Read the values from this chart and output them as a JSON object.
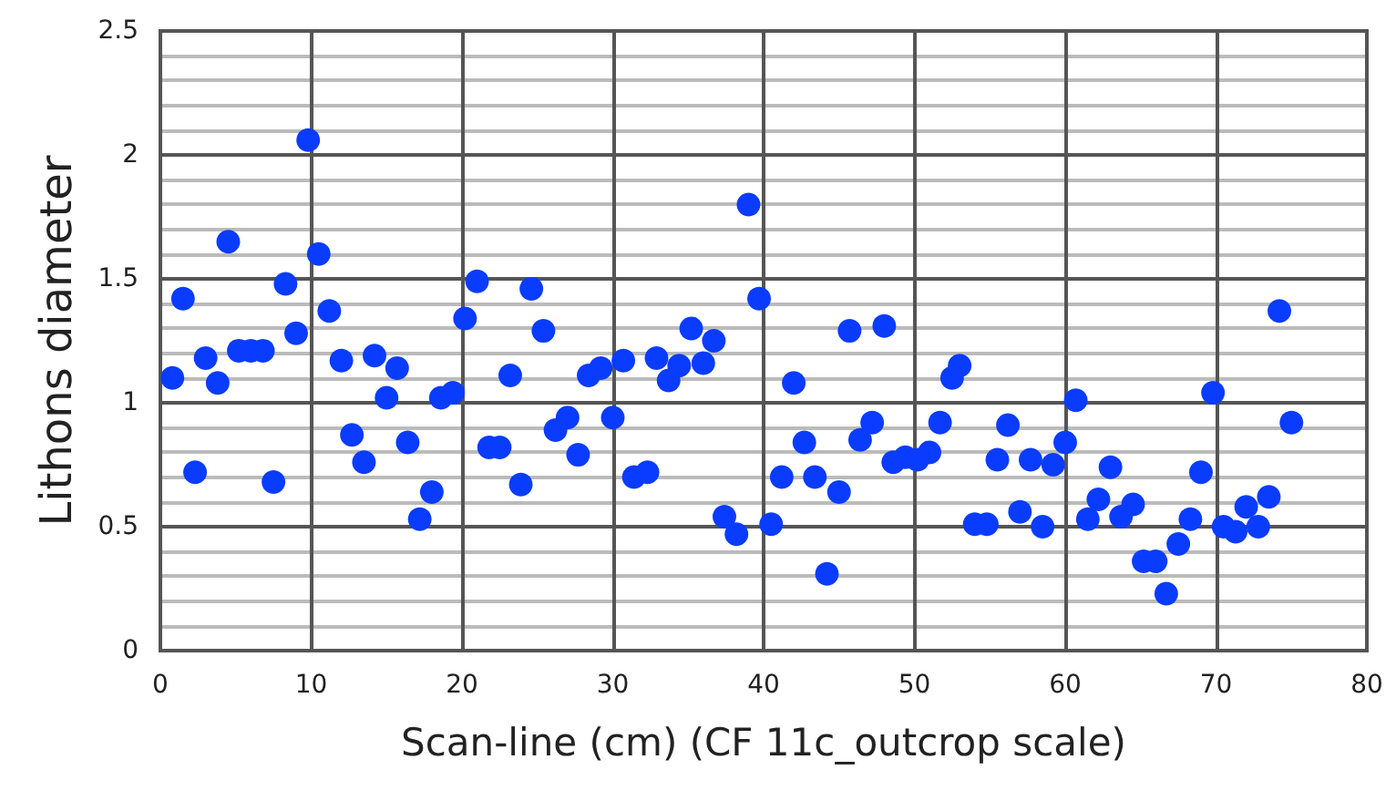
{
  "chart_data": {
    "type": "scatter",
    "xlabel": "Scan-line (cm) (CF 11c_outcrop scale)",
    "ylabel": "Lithons diameter",
    "series": [
      {
        "color": "#0a3cff",
        "x": [
          0.8,
          1.5,
          2.3,
          3.0,
          3.8,
          4.5,
          5.2,
          6.0,
          6.8,
          7.5,
          8.3,
          9.0,
          9.8,
          10.5,
          11.2,
          12.0,
          12.7,
          13.5,
          14.2,
          15.0,
          15.7,
          16.4,
          17.2,
          18.0,
          18.6,
          19.4,
          20.2,
          21.0,
          21.8,
          22.5,
          23.2,
          23.9,
          24.6,
          25.4,
          26.2,
          27.0,
          27.7,
          28.4,
          29.2,
          30.0,
          30.7,
          31.4,
          32.3,
          32.9,
          33.7,
          34.4,
          35.2,
          36.0,
          36.7,
          37.4,
          38.2,
          39.0,
          39.7,
          40.5,
          41.2,
          42.0,
          42.7,
          43.4,
          44.2,
          45.0,
          45.7,
          46.4,
          47.2,
          48.0,
          48.6,
          49.4,
          50.2,
          51.0,
          51.7,
          52.5,
          53.0,
          54.0,
          54.8,
          55.5,
          56.2,
          57.0,
          57.7,
          58.5,
          59.2,
          60.0,
          60.7,
          61.5,
          62.2,
          63.0,
          63.7,
          64.5,
          65.2,
          66.0,
          66.7,
          67.5,
          68.3,
          69.0,
          69.8,
          70.5,
          71.3,
          72.0,
          72.8,
          73.5,
          74.2,
          75.0
        ],
        "values": [
          1.1,
          1.42,
          0.72,
          1.18,
          1.08,
          1.65,
          1.21,
          1.21,
          1.21,
          0.68,
          1.48,
          1.28,
          2.06,
          1.6,
          1.37,
          1.17,
          0.87,
          0.76,
          1.19,
          1.02,
          1.14,
          0.84,
          0.53,
          0.64,
          1.02,
          1.04,
          1.34,
          1.49,
          0.82,
          0.82,
          1.11,
          0.67,
          1.46,
          1.29,
          0.89,
          0.94,
          0.79,
          1.11,
          1.14,
          0.94,
          1.17,
          0.7,
          0.72,
          1.18,
          1.09,
          1.15,
          1.3,
          1.16,
          1.25,
          0.54,
          0.47,
          1.8,
          1.42,
          0.51,
          0.7,
          1.08,
          0.84,
          0.7,
          0.31,
          0.64,
          1.29,
          0.85,
          0.92,
          1.31,
          0.76,
          0.78,
          0.77,
          0.8,
          0.92,
          1.1,
          1.15,
          0.51,
          0.51,
          0.77,
          0.91,
          0.56,
          0.77,
          0.5,
          0.75,
          0.84,
          1.01,
          0.53,
          0.61,
          0.74,
          0.54,
          0.59,
          0.36,
          0.36,
          0.23,
          0.43,
          0.53,
          0.72,
          1.04,
          0.5,
          0.48,
          0.58,
          0.5,
          0.62,
          1.37,
          0.92
        ]
      }
    ],
    "xlim": [
      0,
      80
    ],
    "xticks": [
      0,
      10,
      20,
      30,
      40,
      50,
      60,
      70,
      80
    ],
    "ylim": [
      0,
      2.5
    ],
    "yticks": [
      0,
      0.5,
      1,
      1.5,
      2,
      2.5
    ],
    "grid": true,
    "marker": "circle"
  }
}
